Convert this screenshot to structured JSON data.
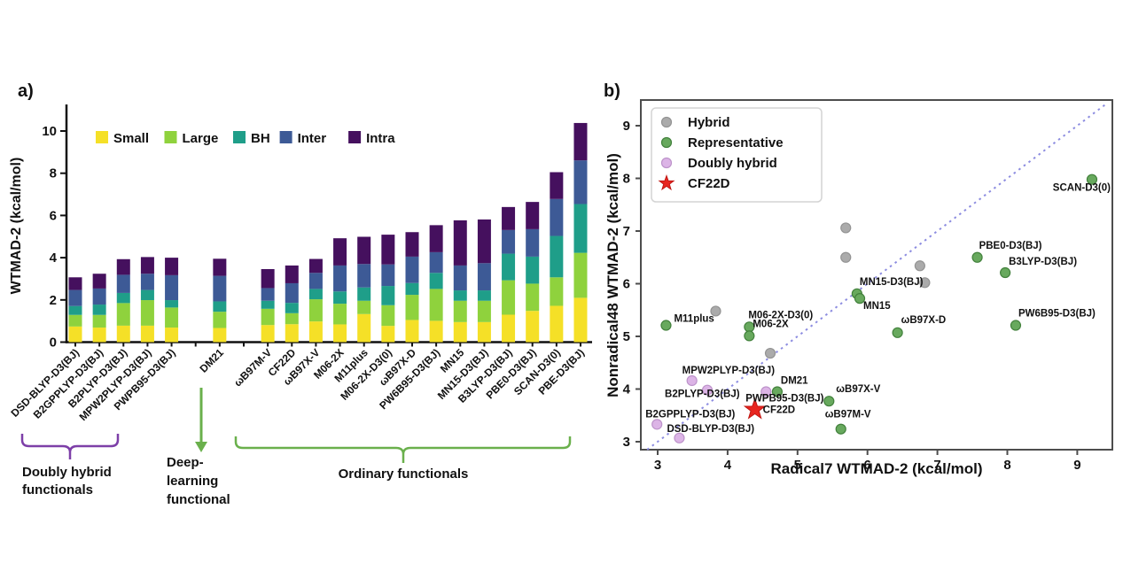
{
  "panel_a": {
    "letter": "a)",
    "ylabel": "WTMAD-2 (kcal/mol)",
    "annotations": {
      "doubly_hybrid": {
        "lines": [
          "Doubly hybrid",
          "functionals"
        ],
        "color": "#7d3fa8"
      },
      "deep_learning": {
        "lines": [
          "Deep-",
          "learning",
          "functional"
        ],
        "color": "#6ab04c"
      },
      "ordinary": {
        "lines": [
          "Ordinary functionals"
        ],
        "color": "#6ab04c"
      }
    }
  },
  "panel_b": {
    "letter": "b)",
    "xlabel": "Radical7 WTMAD-2 (kcal/mol)",
    "ylabel": "Nonradical48 WTMAD-2 (kcal/mol)",
    "legend": [
      {
        "name": "Hybrid",
        "marker": "circle",
        "fill": "#ababab",
        "stroke": "#939393"
      },
      {
        "name": "Representative",
        "marker": "circle",
        "fill": "#68a95e",
        "stroke": "#42813c"
      },
      {
        "name": "Doubly hybrid",
        "marker": "circle",
        "fill": "#dcb4e6",
        "stroke": "#bd93ca"
      },
      {
        "name": "CF22D",
        "marker": "star",
        "fill": "#e8251f",
        "stroke": "#c01713"
      }
    ]
  },
  "chart_data": [
    {
      "type": "bar",
      "stacked": true,
      "ylabel": "WTMAD-2 (kcal/mol)",
      "ylim": [
        0,
        11.3
      ],
      "yticks": [
        0,
        2,
        4,
        6,
        8,
        10
      ],
      "total_slots": 22,
      "categories": [
        "DSD-BLYP-D3(BJ)",
        "B2GPPLYP-D3(BJ)",
        "B2PLYP-D3(BJ)",
        "MPW2PLYP-D3(BJ)",
        "PWPB95-D3(BJ)",
        "DM21",
        "ωB97M-V",
        "CF22D",
        "ωB97X-V",
        "M06-2X",
        "M11plus",
        "M06-2X-D3(0)",
        "ωB97X-D",
        "PW6B95-D3(BJ)",
        "MN15",
        "MN15-D3(BJ)",
        "B3LYP-D3(BJ)",
        "PBE0-D3(BJ)",
        "SCAN-D3(0)",
        "PBE-D3(BJ)"
      ],
      "slots": [
        0,
        1,
        2,
        3,
        4,
        6,
        8,
        9,
        10,
        11,
        12,
        13,
        14,
        15,
        16,
        17,
        18,
        19,
        20,
        21
      ],
      "series": [
        {
          "name": "Small",
          "color": "#f5e027",
          "values": [
            0.74,
            0.69,
            0.78,
            0.78,
            0.69,
            0.67,
            0.81,
            0.85,
            0.98,
            0.84,
            1.33,
            0.77,
            1.05,
            1.01,
            0.95,
            0.95,
            1.3,
            1.48,
            1.72,
            2.1
          ]
        },
        {
          "name": "Large",
          "color": "#8fd23d",
          "values": [
            0.55,
            0.6,
            1.07,
            1.21,
            0.95,
            0.77,
            0.77,
            0.52,
            1.05,
            0.98,
            0.63,
            0.98,
            1.19,
            1.51,
            1.01,
            1.01,
            1.63,
            1.29,
            1.35,
            2.13
          ]
        },
        {
          "name": "BH",
          "color": "#1f9e89",
          "values": [
            0.42,
            0.49,
            0.48,
            0.48,
            0.35,
            0.49,
            0.38,
            0.49,
            0.49,
            0.58,
            0.63,
            0.91,
            0.56,
            0.76,
            0.49,
            0.49,
            1.26,
            1.28,
            1.96,
            2.31
          ]
        },
        {
          "name": "Inter",
          "color": "#3d5a96",
          "values": [
            0.76,
            0.76,
            0.86,
            0.77,
            1.18,
            1.21,
            0.6,
            0.93,
            0.76,
            1.23,
            1.11,
            1.02,
            1.25,
            0.98,
            1.18,
            1.29,
            1.12,
            1.3,
            1.75,
            2.07
          ]
        },
        {
          "name": "Intra",
          "color": "#45105e",
          "values": [
            0.6,
            0.7,
            0.74,
            0.79,
            0.83,
            0.81,
            0.9,
            0.84,
            0.66,
            1.29,
            1.29,
            1.41,
            1.16,
            1.28,
            2.14,
            2.07,
            1.09,
            1.29,
            1.27,
            1.77
          ]
        }
      ]
    },
    {
      "type": "scatter",
      "xlabel": "Radical7 WTMAD-2 (kcal/mol)",
      "ylabel": "Nonradical48 WTMAD-2 (kcal/mol)",
      "xlim": [
        2.75,
        9.5
      ],
      "ylim": [
        2.8,
        9.45
      ],
      "xticks": [
        3,
        4,
        5,
        6,
        7,
        8,
        9
      ],
      "yticks": [
        3,
        4,
        5,
        6,
        7,
        8,
        9
      ],
      "identity_line": {
        "from": 2.85,
        "to": 9.42,
        "color": "#8c8ce0"
      },
      "series": [
        {
          "name": "Hybrid",
          "marker": "circle",
          "fill": "#ababab",
          "stroke": "#939393",
          "points": [
            {
              "x": 3.83,
              "y": 5.48
            },
            {
              "x": 5.69,
              "y": 7.06
            },
            {
              "x": 5.69,
              "y": 6.5
            },
            {
              "x": 6.75,
              "y": 6.34
            },
            {
              "x": 6.82,
              "y": 6.02
            },
            {
              "x": 4.61,
              "y": 4.68
            }
          ]
        },
        {
          "name": "Representative",
          "marker": "circle",
          "fill": "#68a95e",
          "stroke": "#42813c",
          "points": [
            {
              "x": 3.12,
              "y": 5.21,
              "label": "M11plus",
              "dx": 9,
              "dy": -4,
              "anchor": "start"
            },
            {
              "x": 4.31,
              "y": 5.18,
              "label": "M06-2X-D3(0)",
              "dx": -1,
              "dy": -10,
              "anchor": "start"
            },
            {
              "x": 4.31,
              "y": 5.01,
              "label": "M06-2X",
              "dx": 4,
              "dy": -10,
              "anchor": "start"
            },
            {
              "x": 4.71,
              "y": 3.95,
              "label": "DM21",
              "dx": 4,
              "dy": -9,
              "anchor": "start"
            },
            {
              "x": 5.45,
              "y": 3.77,
              "label": "ωB97X-V",
              "dx": 8,
              "dy": -10,
              "anchor": "start"
            },
            {
              "x": 5.62,
              "y": 3.24,
              "label": "ωB97M-V",
              "dx": -18,
              "dy": -13,
              "anchor": "start"
            },
            {
              "x": 5.85,
              "y": 5.81,
              "label": "MN15-D3(BJ)",
              "dx": 3,
              "dy": -10,
              "anchor": "start"
            },
            {
              "x": 5.89,
              "y": 5.72,
              "label": "MN15",
              "dx": 4,
              "dy": 12,
              "anchor": "start"
            },
            {
              "x": 6.43,
              "y": 5.07,
              "label": "ωB97X-D",
              "dx": 4,
              "dy": -11,
              "anchor": "start"
            },
            {
              "x": 7.57,
              "y": 6.5,
              "label": "PBE0-D3(BJ)",
              "dx": 2,
              "dy": -10,
              "anchor": "start"
            },
            {
              "x": 7.97,
              "y": 6.21,
              "label": "B3LYP-D3(BJ)",
              "dx": 4,
              "dy": -9,
              "anchor": "start"
            },
            {
              "x": 8.12,
              "y": 5.21,
              "label": "PW6B95-D3(BJ)",
              "dx": 3,
              "dy": -10,
              "anchor": "start"
            },
            {
              "x": 9.21,
              "y": 7.98,
              "label": "SCAN-D3(0)",
              "dx": 21,
              "dy": 13,
              "anchor": "end"
            }
          ]
        },
        {
          "name": "Doubly hybrid",
          "marker": "circle",
          "fill": "#dcb4e6",
          "stroke": "#bd93ca",
          "points": [
            {
              "x": 3.49,
              "y": 4.16,
              "label": "MPW2PLYP-D3(BJ)",
              "dx": -11,
              "dy": -8,
              "anchor": "start"
            },
            {
              "x": 3.71,
              "y": 3.98,
              "label": "B2PLYP-D3(BJ)",
              "dx": -48,
              "dy": 8,
              "anchor": "start"
            },
            {
              "x": 4.55,
              "y": 3.95,
              "label": "PWPB95-D3(BJ)",
              "dx": -23,
              "dy": 11,
              "anchor": "start"
            },
            {
              "x": 2.99,
              "y": 3.33,
              "label": "B2GPPLYP-D3(BJ)",
              "dx": -13,
              "dy": -8,
              "anchor": "start"
            },
            {
              "x": 3.31,
              "y": 3.07,
              "label": "DSD-BLYP-D3(BJ)",
              "dx": -14,
              "dy": -7,
              "anchor": "start"
            }
          ]
        },
        {
          "name": "CF22D",
          "marker": "star",
          "fill": "#e8251f",
          "stroke": "#c01713",
          "points": [
            {
              "x": 4.39,
              "y": 3.61,
              "label": "CF22D",
              "dx": 9,
              "dy": 4,
              "anchor": "start"
            }
          ]
        }
      ]
    }
  ]
}
